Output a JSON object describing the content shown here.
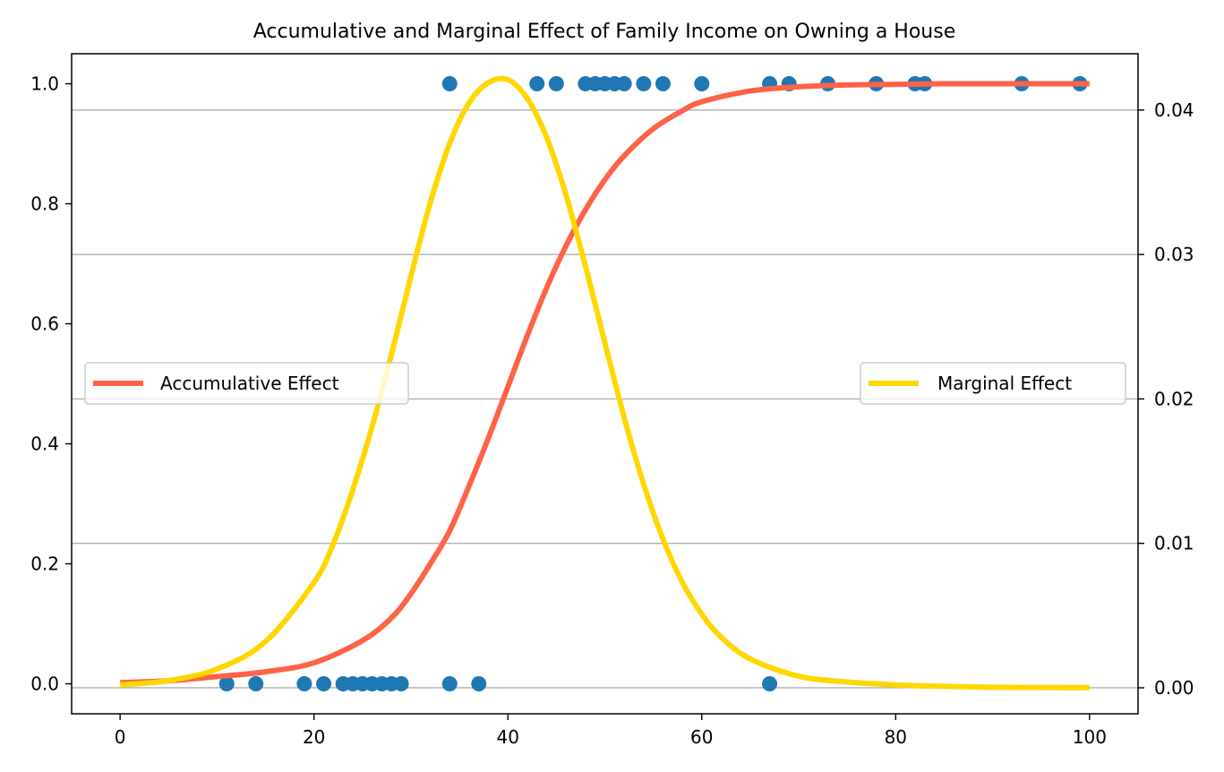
{
  "chart_data": {
    "type": "scatter",
    "title": "Accumulative and Marginal Effect of Family Income on Owning a House",
    "xlabel": "",
    "ylabel": "",
    "ylabel_right": "",
    "xlim": [
      -5,
      105
    ],
    "ylim": [
      -0.05,
      1.05
    ],
    "ylim_right": [
      -0.0018,
      0.0439
    ],
    "x_ticks": [
      0,
      20,
      40,
      60,
      80,
      100
    ],
    "x_tick_labels": [
      "0",
      "20",
      "40",
      "60",
      "80",
      "100"
    ],
    "y_ticks": [
      0.0,
      0.2,
      0.4,
      0.6,
      0.8,
      1.0
    ],
    "y_tick_labels": [
      "0.0",
      "0.2",
      "0.4",
      "0.6",
      "0.8",
      "1.0"
    ],
    "y_right_ticks": [
      0.0,
      0.01,
      0.02,
      0.03,
      0.04
    ],
    "y_right_tick_labels": [
      "0.00",
      "0.01",
      "0.02",
      "0.03",
      "0.04"
    ],
    "grid": "horizontal lines on right axis",
    "series": [
      {
        "kind": "scatter",
        "axis": "left",
        "color": "#1f77b4",
        "points": [
          {
            "x": 11,
            "y": 0
          },
          {
            "x": 14,
            "y": 0
          },
          {
            "x": 19,
            "y": 0
          },
          {
            "x": 21,
            "y": 0
          },
          {
            "x": 23,
            "y": 0
          },
          {
            "x": 24,
            "y": 0
          },
          {
            "x": 25,
            "y": 0
          },
          {
            "x": 26,
            "y": 0
          },
          {
            "x": 27,
            "y": 0
          },
          {
            "x": 28,
            "y": 0
          },
          {
            "x": 29,
            "y": 0
          },
          {
            "x": 34,
            "y": 0
          },
          {
            "x": 37,
            "y": 0
          },
          {
            "x": 67,
            "y": 0
          },
          {
            "x": 34,
            "y": 1
          },
          {
            "x": 43,
            "y": 1
          },
          {
            "x": 45,
            "y": 1
          },
          {
            "x": 48,
            "y": 1
          },
          {
            "x": 49,
            "y": 1
          },
          {
            "x": 50,
            "y": 1
          },
          {
            "x": 51,
            "y": 1
          },
          {
            "x": 52,
            "y": 1
          },
          {
            "x": 54,
            "y": 1
          },
          {
            "x": 56,
            "y": 1
          },
          {
            "x": 60,
            "y": 1
          },
          {
            "x": 67,
            "y": 1
          },
          {
            "x": 69,
            "y": 1
          },
          {
            "x": 73,
            "y": 1
          },
          {
            "x": 78,
            "y": 1
          },
          {
            "x": 82,
            "y": 1
          },
          {
            "x": 83,
            "y": 1
          },
          {
            "x": 93,
            "y": 1
          },
          {
            "x": 99,
            "y": 1
          }
        ]
      },
      {
        "kind": "line",
        "axis": "left",
        "name": "Accumulative Effect",
        "color": "#ff6347",
        "x": [
          0,
          5,
          10,
          15,
          20,
          25,
          28,
          30,
          32,
          34,
          36,
          38,
          40,
          42,
          44,
          46,
          48,
          50,
          52,
          55,
          58,
          60,
          65,
          70,
          75,
          80,
          85,
          90,
          95,
          100
        ],
        "values": [
          0.002,
          0.005,
          0.012,
          0.02,
          0.035,
          0.072,
          0.11,
          0.15,
          0.2,
          0.255,
          0.33,
          0.41,
          0.495,
          0.58,
          0.66,
          0.73,
          0.79,
          0.84,
          0.88,
          0.925,
          0.955,
          0.97,
          0.988,
          0.995,
          0.998,
          0.999,
          1.0,
          1.0,
          1.0,
          1.0
        ]
      },
      {
        "kind": "line",
        "axis": "right",
        "name": "Marginal Effect",
        "color": "#ffd700",
        "x": [
          0,
          5,
          10,
          15,
          20,
          22,
          24,
          26,
          28,
          30,
          32,
          34,
          36,
          38,
          40,
          42,
          44,
          46,
          48,
          50,
          52,
          54,
          56,
          58,
          60,
          62,
          65,
          70,
          75,
          80,
          85,
          90,
          95,
          100
        ],
        "values": [
          0.0002,
          0.0005,
          0.0013,
          0.0032,
          0.0073,
          0.01,
          0.0137,
          0.0181,
          0.0231,
          0.0285,
          0.0336,
          0.0377,
          0.0405,
          0.0419,
          0.0421,
          0.0408,
          0.0381,
          0.0341,
          0.0292,
          0.0239,
          0.0187,
          0.0141,
          0.0103,
          0.0073,
          0.0051,
          0.0035,
          0.002,
          0.0008,
          0.0004,
          0.0002,
          0.0001,
          4e-05,
          2e-05,
          1e-05
        ]
      }
    ],
    "legend_left": {
      "placement": "center-left",
      "label": "Accumulative Effect",
      "color": "#ff6347"
    },
    "legend_right": {
      "placement": "center-right",
      "label": "Marginal Effect",
      "color": "#ffd700"
    }
  }
}
